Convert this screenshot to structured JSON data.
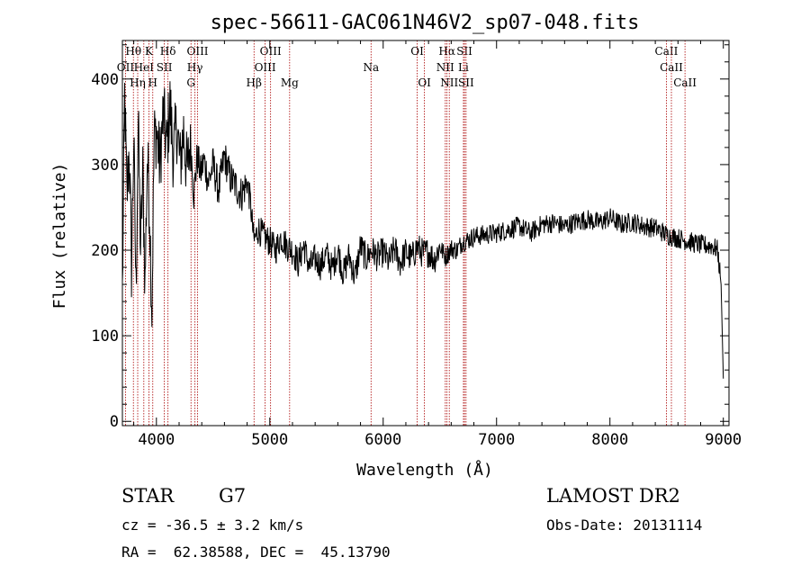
{
  "chart_data": {
    "type": "line",
    "title": "spec-56611-GAC061N46V2_sp07-048.fits",
    "xlabel": "Wavelength (Å)",
    "ylabel": "Flux (relative)",
    "xlim": [
      3700,
      9050
    ],
    "ylim": [
      -5,
      445
    ],
    "xticks": [
      4000,
      5000,
      6000,
      7000,
      8000,
      9000
    ],
    "yticks": [
      0,
      100,
      200,
      300,
      400
    ],
    "line_color": "#000000",
    "marker_color": "#aa0000",
    "series": [
      {
        "x": [
          3700,
          3720,
          3740,
          3760,
          3780,
          3800,
          3820,
          3840,
          3860,
          3880,
          3900,
          3920,
          3940,
          3960,
          3980,
          4000,
          4030,
          4060,
          4090,
          4120,
          4150,
          4180,
          4210,
          4240,
          4270,
          4300,
          4330,
          4360,
          4390,
          4420,
          4460,
          4500,
          4550,
          4600,
          4650,
          4700,
          4750,
          4800,
          4830,
          4860,
          4900,
          4950,
          5000,
          5050,
          5100,
          5150,
          5200,
          5250,
          5300,
          5350,
          5400,
          5450,
          5500,
          5550,
          5600,
          5650,
          5700,
          5750,
          5800,
          5850,
          5900,
          5950,
          6000,
          6050,
          6100,
          6150,
          6200,
          6250,
          6300,
          6350,
          6400,
          6450,
          6500,
          6550,
          6600,
          6650,
          6700,
          6750,
          6800,
          6900,
          7000,
          7100,
          7200,
          7300,
          7400,
          7500,
          7600,
          7700,
          7800,
          7900,
          8000,
          8100,
          8200,
          8300,
          8400,
          8500,
          8600,
          8700,
          8800,
          8900,
          8950,
          8980,
          9000
        ],
        "y": [
          150,
          380,
          260,
          320,
          180,
          330,
          150,
          350,
          200,
          290,
          160,
          310,
          250,
          130,
          330,
          340,
          300,
          360,
          320,
          370,
          310,
          345,
          300,
          340,
          290,
          330,
          265,
          310,
          290,
          305,
          280,
          300,
          270,
          310,
          285,
          275,
          265,
          280,
          255,
          210,
          225,
          215,
          210,
          200,
          215,
          205,
          200,
          185,
          205,
          180,
          190,
          182,
          196,
          178,
          200,
          172,
          194,
          168,
          205,
          190,
          200,
          192,
          198,
          186,
          202,
          185,
          198,
          190,
          204,
          196,
          198,
          189,
          204,
          192,
          202,
          200,
          210,
          212,
          216,
          218,
          220,
          224,
          228,
          220,
          230,
          232,
          228,
          233,
          236,
          232,
          238,
          230,
          233,
          228,
          226,
          218,
          214,
          210,
          206,
          205,
          200,
          160,
          50
        ]
      }
    ],
    "line_markers": [
      {
        "label": "Hθ",
        "x": 3797,
        "row": 0
      },
      {
        "label": "K",
        "x": 3934,
        "row": 0
      },
      {
        "label": "Hδ",
        "x": 4102,
        "row": 0
      },
      {
        "label": "OIII",
        "x": 4363,
        "row": 0
      },
      {
        "label": "OIII",
        "x": 5007,
        "row": 0
      },
      {
        "label": "OI",
        "x": 6300,
        "row": 0
      },
      {
        "label": "Hα",
        "x": 6563,
        "row": 0
      },
      {
        "label": "SII",
        "x": 6717,
        "row": 0
      },
      {
        "label": "CaII",
        "x": 8498,
        "row": 0
      },
      {
        "label": "OII",
        "x": 3727,
        "row": 1
      },
      {
        "label": "HeI",
        "x": 3889,
        "row": 1
      },
      {
        "label": "SII",
        "x": 4070,
        "row": 1
      },
      {
        "label": "Hγ",
        "x": 4340,
        "row": 1
      },
      {
        "label": "OIII",
        "x": 4959,
        "row": 1
      },
      {
        "label": "Na",
        "x": 5893,
        "row": 1
      },
      {
        "label": "NII",
        "x": 6548,
        "row": 1
      },
      {
        "label": "Li",
        "x": 6708,
        "row": 1
      },
      {
        "label": "CaII",
        "x": 8542,
        "row": 1
      },
      {
        "label": "Hη",
        "x": 3835,
        "row": 2
      },
      {
        "label": "H",
        "x": 3968,
        "row": 2
      },
      {
        "label": "G",
        "x": 4305,
        "row": 2
      },
      {
        "label": "Hβ",
        "x": 4861,
        "row": 2
      },
      {
        "label": "Mg",
        "x": 5175,
        "row": 2
      },
      {
        "label": "OI",
        "x": 6364,
        "row": 2
      },
      {
        "label": "NII",
        "x": 6583,
        "row": 2
      },
      {
        "label": "SII",
        "x": 6731,
        "row": 2
      },
      {
        "label": "CaII",
        "x": 8662,
        "row": 2
      }
    ]
  },
  "info": {
    "object_class": "STAR",
    "subclass": "G7",
    "survey": "LAMOST DR2",
    "redshift": "cz = -36.5 ± 3.2 km/s",
    "obs_date": "Obs-Date: 20131114",
    "coords": "RA =  62.38588, DEC =  45.13790"
  }
}
